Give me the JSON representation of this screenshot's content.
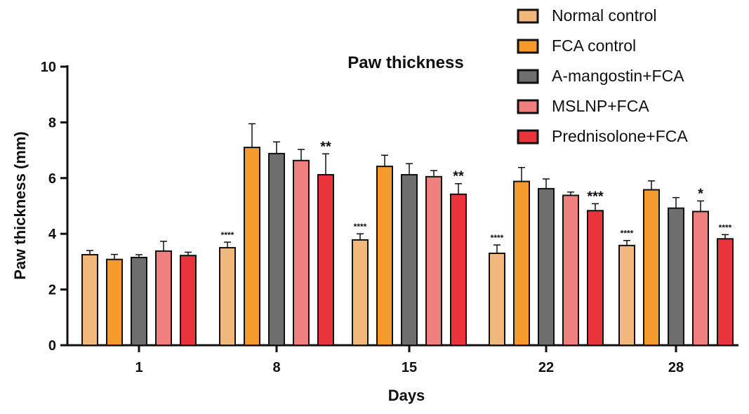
{
  "chart_data": {
    "type": "bar",
    "title": "Paw thickness",
    "xlabel": "Days",
    "ylabel": "Paw thickness (mm)",
    "ylim": [
      0,
      10
    ],
    "yticks": [
      0,
      2,
      4,
      6,
      8,
      10
    ],
    "categories": [
      "1",
      "8",
      "15",
      "22",
      "28"
    ],
    "legend_position": "top-right",
    "error_bars": true,
    "series": [
      {
        "name": "Normal control",
        "color": "#f2b77a",
        "values": [
          3.25,
          3.5,
          3.78,
          3.3,
          3.58
        ],
        "errors": [
          0.15,
          0.2,
          0.22,
          0.3,
          0.18
        ],
        "annotations": [
          "",
          "****",
          "****",
          "****",
          "****"
        ]
      },
      {
        "name": "FCA control",
        "color": "#f59a2c",
        "values": [
          3.08,
          7.1,
          6.42,
          5.88,
          5.58
        ],
        "errors": [
          0.18,
          0.85,
          0.4,
          0.5,
          0.32
        ],
        "annotations": [
          "",
          "",
          "",
          "",
          ""
        ]
      },
      {
        "name": "A-mangostin+FCA",
        "color": "#6e6e6e",
        "values": [
          3.15,
          6.88,
          6.12,
          5.62,
          4.92
        ],
        "errors": [
          0.1,
          0.42,
          0.4,
          0.35,
          0.38
        ],
        "annotations": [
          "",
          "",
          "",
          "",
          ""
        ]
      },
      {
        "name": "MSLNP+FCA",
        "color": "#f08080",
        "values": [
          3.38,
          6.63,
          6.05,
          5.38,
          4.8
        ],
        "errors": [
          0.35,
          0.4,
          0.22,
          0.12,
          0.38
        ],
        "annotations": [
          "",
          "",
          "",
          "",
          "*"
        ]
      },
      {
        "name": "Prednisolone+FCA",
        "color": "#e8343a",
        "values": [
          3.22,
          6.12,
          5.42,
          4.83,
          3.82
        ],
        "errors": [
          0.12,
          0.75,
          0.38,
          0.25,
          0.15
        ],
        "annotations": [
          "",
          "**",
          "**",
          "***",
          "****"
        ]
      }
    ]
  }
}
